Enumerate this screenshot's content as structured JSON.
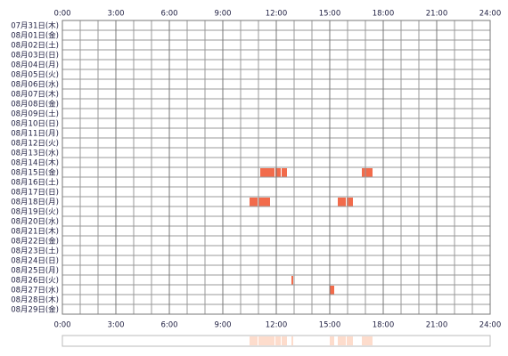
{
  "chart_data": {
    "type": "timeline",
    "categories": [
      "07月31日(木)",
      "08月01日(金)",
      "08月02日(土)",
      "08月03日(日)",
      "08月04日(月)",
      "08月05日(火)",
      "08月06日(水)",
      "08月07日(木)",
      "08月08日(金)",
      "08月09日(土)",
      "08月10日(日)",
      "08月11日(月)",
      "08月12日(火)",
      "08月13日(水)",
      "08月14日(木)",
      "08月15日(金)",
      "08月16日(土)",
      "08月17日(日)",
      "08月18日(月)",
      "08月19日(火)",
      "08月20日(水)",
      "08月21日(木)",
      "08月22日(金)",
      "08月23日(土)",
      "08月24日(日)",
      "08月25日(月)",
      "08月26日(火)",
      "08月27日(水)",
      "08月28日(木)",
      "08月29日(金)"
    ],
    "values": [
      [],
      [],
      [],
      [],
      [],
      [],
      [],
      [],
      [],
      [],
      [],
      [],
      [],
      [],
      [],
      [
        [
          11.1,
          11.9
        ],
        [
          11.95,
          12.25
        ],
        [
          12.3,
          12.6
        ],
        [
          16.8,
          17.4
        ]
      ],
      [],
      [],
      [
        [
          10.5,
          10.95
        ],
        [
          11.0,
          11.65
        ],
        [
          15.45,
          15.9
        ],
        [
          15.95,
          16.3
        ]
      ],
      [],
      [],
      [],
      [],
      [],
      [],
      [],
      [
        [
          12.85,
          12.95
        ]
      ],
      [
        [
          15.0,
          15.25
        ]
      ],
      [],
      []
    ],
    "color": "#f26b4b",
    "summary_color": "#fddccc",
    "xlim": [
      0,
      24
    ],
    "xticks": [
      {
        "value": 0,
        "label": "0:00"
      },
      {
        "value": 3,
        "label": "3:00"
      },
      {
        "value": 6,
        "label": "6:00"
      },
      {
        "value": 9,
        "label": "9:00"
      },
      {
        "value": 12,
        "label": "12:00"
      },
      {
        "value": 15,
        "label": "15:00"
      },
      {
        "value": 18,
        "label": "18:00"
      },
      {
        "value": 21,
        "label": "21:00"
      },
      {
        "value": 24,
        "label": "24:00"
      }
    ],
    "grid_step": 1
  }
}
